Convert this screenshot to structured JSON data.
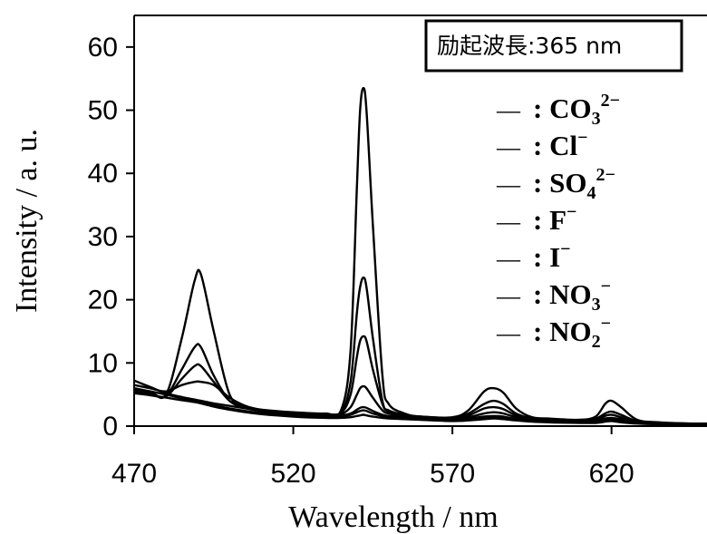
{
  "chart_data": {
    "type": "line",
    "xlabel": "Wavelength / nm",
    "ylabel": "Intensity / a. u.",
    "xlim": [
      470,
      650
    ],
    "ylim": [
      0,
      65
    ],
    "xticks": [
      470,
      520,
      570,
      620
    ],
    "yticks": [
      0,
      10,
      20,
      30,
      40,
      50,
      60
    ],
    "grid": false,
    "legend_position": "top-right",
    "annotation": "励起波長:365 nm",
    "x": [
      470,
      475,
      480,
      485,
      489,
      491,
      495,
      500,
      505,
      510,
      520,
      530,
      535,
      538,
      540,
      541,
      542,
      543,
      545,
      548,
      550,
      555,
      560,
      570,
      575,
      580,
      583,
      586,
      590,
      595,
      600,
      610,
      615,
      618,
      620,
      623,
      628,
      635,
      645,
      650
    ],
    "series": [
      {
        "name": "CO3 2−",
        "values": [
          5.8,
          5.5,
          5.0,
          14.0,
          23.0,
          24.0,
          15.0,
          5.0,
          3.0,
          2.6,
          2.2,
          2.0,
          2.5,
          12.0,
          38.0,
          50.0,
          53.5,
          50.0,
          32.0,
          8.0,
          3.5,
          2.0,
          1.5,
          1.4,
          2.5,
          5.5,
          6.0,
          5.3,
          2.8,
          1.4,
          1.2,
          1.0,
          1.5,
          3.5,
          4.0,
          3.0,
          1.0,
          0.6,
          0.4,
          0.4
        ]
      },
      {
        "name": "Cl−",
        "values": [
          5.5,
          5.2,
          4.8,
          9.0,
          12.5,
          12.5,
          8.0,
          4.0,
          3.0,
          2.5,
          2.1,
          1.9,
          2.2,
          7.0,
          18.0,
          22.0,
          23.5,
          22.0,
          14.0,
          4.0,
          2.5,
          1.8,
          1.5,
          1.3,
          2.0,
          3.5,
          4.0,
          3.5,
          2.0,
          1.2,
          1.0,
          0.9,
          1.2,
          2.0,
          2.3,
          1.8,
          0.8,
          0.5,
          0.4,
          0.4
        ]
      },
      {
        "name": "SO4 2−",
        "values": [
          5.3,
          5.0,
          4.7,
          7.5,
          9.5,
          9.5,
          7.0,
          4.0,
          3.0,
          2.5,
          2.0,
          1.9,
          2.1,
          5.0,
          11.0,
          13.5,
          14.2,
          13.5,
          9.0,
          3.5,
          2.3,
          1.7,
          1.4,
          1.2,
          1.7,
          2.8,
          3.0,
          2.7,
          1.7,
          1.1,
          1.0,
          0.8,
          1.0,
          1.6,
          1.8,
          1.4,
          0.7,
          0.5,
          0.4,
          0.4
        ]
      },
      {
        "name": "F−",
        "values": [
          6.5,
          6.0,
          5.5,
          6.5,
          7.0,
          7.0,
          6.5,
          4.5,
          3.2,
          2.6,
          2.0,
          1.8,
          1.9,
          3.0,
          5.0,
          6.0,
          6.3,
          6.0,
          4.5,
          2.5,
          2.0,
          1.6,
          1.3,
          1.1,
          1.4,
          2.0,
          2.2,
          2.0,
          1.4,
          1.0,
          0.9,
          0.7,
          0.9,
          1.2,
          1.3,
          1.1,
          0.6,
          0.4,
          0.3,
          0.3
        ]
      },
      {
        "name": "I−",
        "values": [
          7.2,
          6.2,
          5.2,
          4.6,
          4.2,
          4.0,
          3.6,
          3.2,
          2.8,
          2.4,
          1.9,
          1.7,
          1.7,
          2.0,
          2.6,
          2.9,
          3.0,
          2.9,
          2.4,
          1.8,
          1.6,
          1.4,
          1.2,
          1.0,
          1.2,
          1.5,
          1.6,
          1.5,
          1.1,
          0.9,
          0.8,
          0.6,
          0.7,
          0.9,
          1.0,
          0.8,
          0.5,
          0.4,
          0.3,
          0.3
        ]
      },
      {
        "name": "NO3−",
        "values": [
          6.0,
          5.5,
          5.0,
          4.4,
          4.0,
          3.8,
          3.3,
          2.8,
          2.4,
          2.1,
          1.7,
          1.5,
          1.5,
          1.8,
          2.2,
          2.4,
          2.5,
          2.4,
          2.0,
          1.6,
          1.4,
          1.2,
          1.1,
          0.9,
          1.0,
          1.3,
          1.4,
          1.3,
          1.0,
          0.8,
          0.7,
          0.6,
          0.6,
          0.8,
          0.9,
          0.7,
          0.5,
          0.4,
          0.3,
          0.3
        ]
      },
      {
        "name": "NO2−",
        "values": [
          5.2,
          4.9,
          4.5,
          4.1,
          3.8,
          3.6,
          3.1,
          2.6,
          2.2,
          1.9,
          1.5,
          1.3,
          1.3,
          1.4,
          1.6,
          1.7,
          1.8,
          1.7,
          1.5,
          1.3,
          1.2,
          1.1,
          1.0,
          0.8,
          0.9,
          1.1,
          1.2,
          1.1,
          0.9,
          0.7,
          0.6,
          0.5,
          0.5,
          0.7,
          0.8,
          0.6,
          0.4,
          0.3,
          0.3,
          0.3
        ]
      }
    ]
  },
  "legend_items": [
    {
      "dash": "—",
      "sep": ":",
      "base": "CO",
      "sub": "3",
      "sup": "2−"
    },
    {
      "dash": "—",
      "sep": ":",
      "base": "Cl",
      "sub": "",
      "sup": "−"
    },
    {
      "dash": "—",
      "sep": ":",
      "base": "SO",
      "sub": "4",
      "sup": "2−"
    },
    {
      "dash": "—",
      "sep": ":",
      "base": "F",
      "sub": "",
      "sup": "−"
    },
    {
      "dash": "—",
      "sep": ":",
      "base": "I",
      "sub": "",
      "sup": "−"
    },
    {
      "dash": "—",
      "sep": ":",
      "base": "NO",
      "sub": "3",
      "sup": "−"
    },
    {
      "dash": "—",
      "sep": ":",
      "base": "NO",
      "sub": "2",
      "sup": "−"
    }
  ],
  "colors": {
    "line": "#000000",
    "axis": "#000000",
    "background": "#ffffff"
  }
}
